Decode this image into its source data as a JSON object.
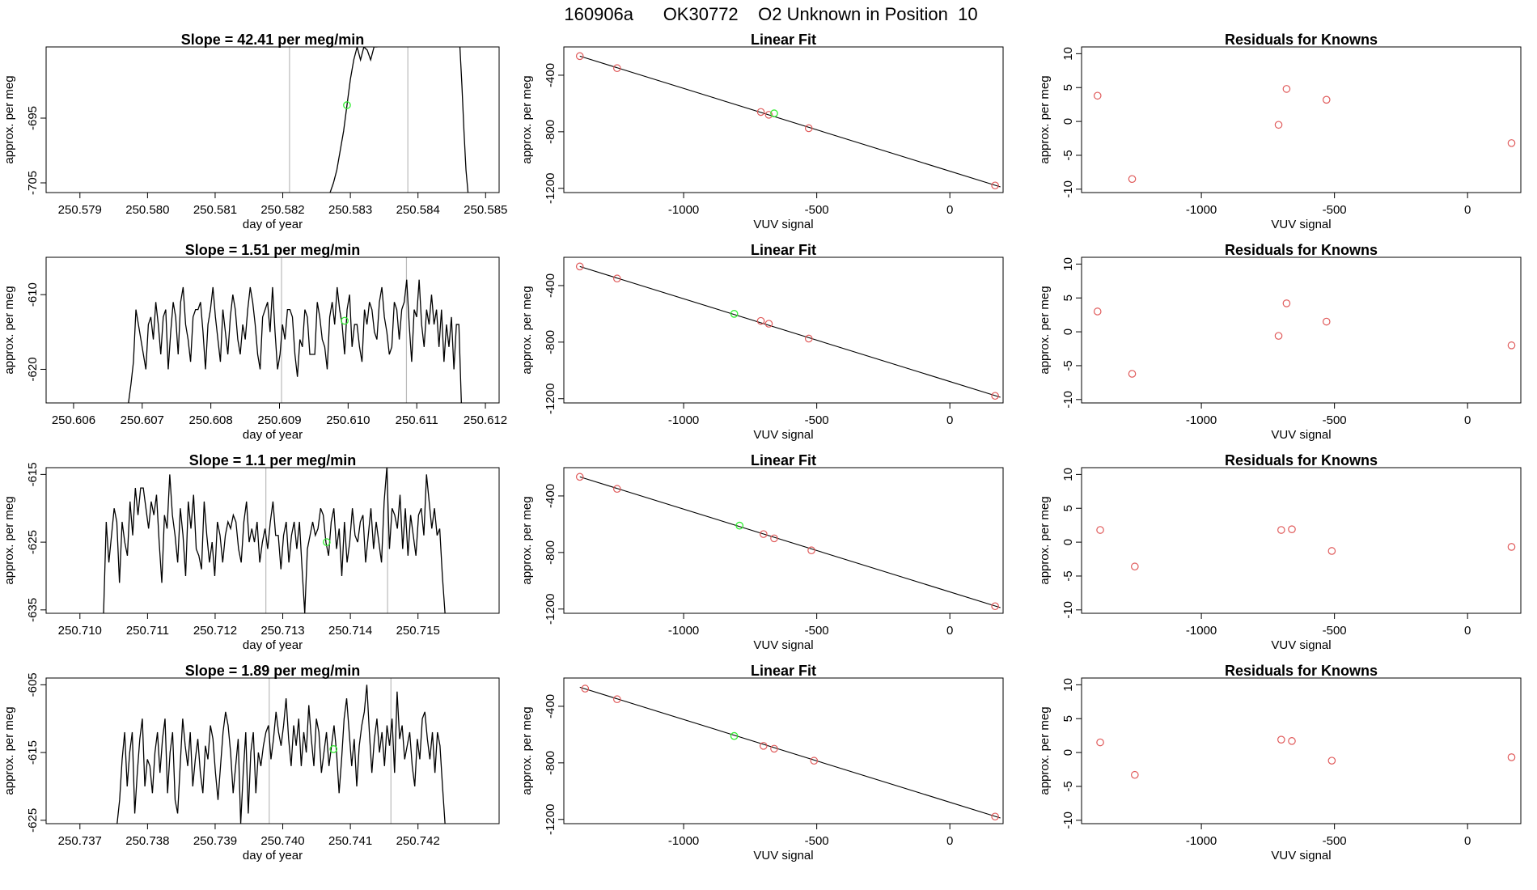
{
  "page_title": "160906a      OK30772    O2 Unknown in Position  10",
  "colors": {
    "trace": "#000000",
    "known_point": "#e05a5a",
    "unknown_point": "#33ee33",
    "vline": "#bbbbbb"
  },
  "chart_data": [
    {
      "type": "line",
      "title": "Slope =  42.41  per meg/min",
      "xlabel": "day of year",
      "ylabel": "approx. per meg",
      "xlim": [
        250.5785,
        250.5852
      ],
      "ylim": [
        -706.5,
        -684
      ],
      "xticks": [
        "250.579",
        "250.580",
        "250.581",
        "250.582",
        "250.583",
        "250.584",
        "250.585"
      ],
      "yticks": [
        "-695",
        "-705"
      ],
      "vlines": [
        250.5821,
        250.58385
      ],
      "series": [
        {
          "x": [
            250.5827,
            250.58275,
            250.5828,
            250.58285,
            250.5829,
            250.58295,
            250.583,
            250.58305,
            250.5831,
            250.58315,
            250.5832,
            250.58325,
            250.5833,
            250.58335,
            250.5834
          ],
          "y": [
            -706.5,
            -705.0,
            -703.0,
            -700.0,
            -697.0,
            -693.0,
            -689.0,
            -686.0,
            -684.0,
            -686.0,
            -684.0,
            -684.5,
            -686.0,
            -684.0,
            -684.0
          ]
        },
        {
          "x": [
            250.58462,
            250.58465,
            250.58468,
            250.58471,
            250.58474
          ],
          "y": [
            -684.0,
            -690.0,
            -697.0,
            -703.0,
            -706.5
          ]
        }
      ],
      "unknown_point": {
        "x": 250.58295,
        "y": -693.0
      }
    },
    {
      "type": "scatter",
      "title": "Linear Fit",
      "xlabel": "VUV signal",
      "ylabel": "approx. per meg",
      "xlim": [
        -1450,
        200
      ],
      "ylim": [
        -1230,
        -200
      ],
      "xticks": [
        "-1000",
        "-500",
        "0"
      ],
      "yticks": [
        "-400",
        "-800",
        "-1200"
      ],
      "fit_line": {
        "x": [
          -1390,
          190
        ],
        "y": [
          -265,
          -1190
        ]
      },
      "known_points": {
        "x": [
          -1390,
          -1250,
          -710,
          -680,
          -530,
          170
        ],
        "y": [
          -265,
          -350,
          -660,
          -680,
          -775,
          -1180
        ]
      },
      "unknown_point": {
        "x": -660,
        "y": -670
      }
    },
    {
      "type": "scatter",
      "title": "Residuals for Knowns",
      "xlabel": "VUV signal",
      "ylabel": "approx. per meg",
      "xlim": [
        -1450,
        200
      ],
      "ylim": [
        -10.5,
        11
      ],
      "xticks": [
        "-1000",
        "-500",
        "0"
      ],
      "yticks": [
        "-10",
        "-5",
        "0",
        "5",
        "10"
      ],
      "known_points": {
        "x": [
          -1390,
          -1260,
          -710,
          -680,
          -530,
          165
        ],
        "y": [
          3.8,
          -8.5,
          -0.5,
          4.8,
          3.2,
          -3.2
        ]
      }
    },
    {
      "type": "line",
      "title": "Slope =  1.51  per meg/min",
      "xlabel": "day of year",
      "ylabel": "approx. per meg",
      "xlim": [
        250.6056,
        250.6122
      ],
      "ylim": [
        -624.5,
        -605
      ],
      "xticks": [
        "250.606",
        "250.607",
        "250.608",
        "250.609",
        "250.610",
        "250.611",
        "250.612"
      ],
      "yticks": [
        "-610",
        "-620"
      ],
      "vlines": [
        250.60903,
        250.61085
      ],
      "series": [
        {
          "x_start": 250.6068,
          "x_end": 250.61165,
          "y": [
            -624.5,
            -622,
            -619,
            -612,
            -614,
            -616,
            -618,
            -620,
            -614,
            -613,
            -616,
            -611,
            -614,
            -618,
            -613,
            -612,
            -620,
            -615,
            -611,
            -613,
            -618,
            -611,
            -609,
            -614,
            -616,
            -619,
            -613,
            -612,
            -612,
            -611,
            -615,
            -620,
            -614,
            -612,
            -609,
            -613,
            -616,
            -619,
            -612,
            -615,
            -618,
            -613,
            -610,
            -612,
            -616,
            -618,
            -614,
            -616,
            -612,
            -609,
            -611,
            -614,
            -618,
            -620,
            -613,
            -612,
            -611,
            -615,
            -609,
            -615,
            -620,
            -618,
            -614,
            -616,
            -612,
            -612,
            -613,
            -618,
            -621,
            -616,
            -617,
            -612,
            -613,
            -618,
            -618,
            -618,
            -611,
            -613,
            -616,
            -617,
            -620,
            -613,
            -611,
            -614,
            -609,
            -612,
            -614,
            -618,
            -612,
            -610,
            -617,
            -614,
            -614,
            -617,
            -619,
            -612,
            -614,
            -611,
            -612,
            -615,
            -616,
            -611,
            -609,
            -613,
            -615,
            -618,
            -617,
            -611,
            -612,
            -616,
            -612,
            -611,
            -608,
            -614,
            -619,
            -612,
            -613,
            -608,
            -614,
            -617,
            -612,
            -614,
            -610,
            -614,
            -612,
            -617,
            -612,
            -619,
            -614,
            -617,
            -613,
            -620,
            -614,
            -614,
            -624.5
          ]
        }
      ],
      "unknown_point": {
        "x": 250.60995,
        "y": -613.5
      }
    },
    {
      "type": "scatter",
      "title": "Linear Fit",
      "xlabel": "VUV signal",
      "ylabel": "approx. per meg",
      "xlim": [
        -1450,
        200
      ],
      "ylim": [
        -1230,
        -200
      ],
      "xticks": [
        "-1000",
        "-500",
        "0"
      ],
      "yticks": [
        "-400",
        "-800",
        "-1200"
      ],
      "fit_line": {
        "x": [
          -1390,
          190
        ],
        "y": [
          -265,
          -1190
        ]
      },
      "known_points": {
        "x": [
          -1390,
          -1250,
          -710,
          -680,
          -530,
          170
        ],
        "y": [
          -265,
          -350,
          -650,
          -670,
          -775,
          -1180
        ]
      },
      "unknown_point": {
        "x": -810,
        "y": -600
      }
    },
    {
      "type": "scatter",
      "title": "Residuals for Knowns",
      "xlabel": "VUV signal",
      "ylabel": "approx. per meg",
      "xlim": [
        -1450,
        200
      ],
      "ylim": [
        -10.5,
        11
      ],
      "xticks": [
        "-1000",
        "-500",
        "0"
      ],
      "yticks": [
        "-10",
        "-5",
        "0",
        "5",
        "10"
      ],
      "known_points": {
        "x": [
          -1390,
          -1260,
          -710,
          -680,
          -530,
          165
        ],
        "y": [
          3.0,
          -6.2,
          -0.6,
          4.2,
          1.5,
          -2.0
        ]
      }
    },
    {
      "type": "line",
      "title": "Slope =  1.1  per meg/min",
      "xlabel": "day of year",
      "ylabel": "approx. per meg",
      "xlim": [
        250.7095,
        250.7162
      ],
      "ylim": [
        -635.5,
        -614
      ],
      "xticks": [
        "250.710",
        "250.711",
        "250.712",
        "250.713",
        "250.714",
        "250.715"
      ],
      "yticks": [
        "-615",
        "-625",
        "-635"
      ],
      "vlines": [
        250.71275,
        250.71455
      ],
      "series": [
        {
          "x_start": 250.71035,
          "x_end": 250.7154,
          "y": [
            -635.5,
            -622,
            -628,
            -624,
            -620,
            -622,
            -631,
            -622,
            -625,
            -627,
            -619,
            -624,
            -617,
            -621,
            -617,
            -617,
            -620,
            -623,
            -619,
            -621,
            -618,
            -625,
            -631,
            -621,
            -623,
            -615,
            -621,
            -624,
            -628,
            -620,
            -624,
            -630,
            -619,
            -623,
            -618,
            -626,
            -627,
            -629,
            -619,
            -624,
            -628,
            -625,
            -630,
            -622,
            -624,
            -628,
            -624,
            -622,
            -623,
            -621,
            -622,
            -626,
            -628,
            -622,
            -619,
            -625,
            -623,
            -625,
            -622,
            -628,
            -625,
            -623,
            -626,
            -622,
            -619,
            -624,
            -624,
            -629,
            -624,
            -622,
            -628,
            -624,
            -622,
            -626,
            -622,
            -629,
            -635.5,
            -626,
            -624,
            -622,
            -624,
            -623,
            -620,
            -621,
            -625,
            -627,
            -622,
            -620,
            -626,
            -623,
            -630,
            -622,
            -628,
            -625,
            -620,
            -624,
            -625,
            -622,
            -621,
            -628,
            -624,
            -620,
            -626,
            -622,
            -625,
            -628,
            -619,
            -614,
            -626,
            -620,
            -621,
            -623,
            -618,
            -626,
            -620,
            -627,
            -621,
            -624,
            -627,
            -621,
            -620,
            -624,
            -615,
            -619,
            -623,
            -620,
            -624,
            -623,
            -630,
            -635.5
          ]
        }
      ],
      "unknown_point": {
        "x": 250.71365,
        "y": -625.0
      }
    },
    {
      "type": "scatter",
      "title": "Linear Fit",
      "xlabel": "VUV signal",
      "ylabel": "approx. per meg",
      "xlim": [
        -1450,
        200
      ],
      "ylim": [
        -1230,
        -200
      ],
      "xticks": [
        "-1000",
        "-500",
        "0"
      ],
      "yticks": [
        "-400",
        "-800",
        "-1200"
      ],
      "fit_line": {
        "x": [
          -1390,
          190
        ],
        "y": [
          -265,
          -1190
        ]
      },
      "known_points": {
        "x": [
          -1390,
          -1250,
          -700,
          -660,
          -520,
          170
        ],
        "y": [
          -265,
          -350,
          -670,
          -700,
          -785,
          -1180
        ]
      },
      "unknown_point": {
        "x": -790,
        "y": -610
      }
    },
    {
      "type": "scatter",
      "title": "Residuals for Knowns",
      "xlabel": "VUV signal",
      "ylabel": "approx. per meg",
      "xlim": [
        -1450,
        200
      ],
      "ylim": [
        -10.5,
        11
      ],
      "xticks": [
        "-1000",
        "-500",
        "0"
      ],
      "yticks": [
        "-10",
        "-5",
        "0",
        "5",
        "10"
      ],
      "known_points": {
        "x": [
          -1380,
          -1250,
          -700,
          -660,
          -510,
          165
        ],
        "y": [
          1.8,
          -3.6,
          1.8,
          1.9,
          -1.3,
          -0.7
        ]
      }
    },
    {
      "type": "line",
      "title": "Slope =  1.89  per meg/min",
      "xlabel": "day of year",
      "ylabel": "approx. per meg",
      "xlim": [
        250.7365,
        250.7432
      ],
      "ylim": [
        -625.5,
        -604
      ],
      "xticks": [
        "250.737",
        "250.738",
        "250.739",
        "250.740",
        "250.741",
        "250.742"
      ],
      "yticks": [
        "-605",
        "-615",
        "-625"
      ],
      "vlines": [
        250.7398,
        250.7416
      ],
      "series": [
        {
          "x_start": 250.73755,
          "x_end": 250.7424,
          "y": [
            -625.5,
            -622,
            -616,
            -612,
            -620,
            -615,
            -612,
            -624,
            -618,
            -613,
            -610,
            -620,
            -616,
            -617,
            -621,
            -615,
            -612,
            -618,
            -613,
            -610,
            -621,
            -615,
            -612,
            -622,
            -624,
            -617,
            -610,
            -614,
            -617,
            -612,
            -620,
            -616,
            -613,
            -618,
            -621,
            -614,
            -616,
            -611,
            -613,
            -618,
            -622,
            -617,
            -612,
            -609,
            -611,
            -615,
            -621,
            -617,
            -613,
            -625.5,
            -618,
            -612,
            -624,
            -615,
            -612,
            -621,
            -615,
            -617,
            -614,
            -612,
            -611,
            -616,
            -613,
            -609,
            -612,
            -614,
            -611,
            -607,
            -613,
            -617,
            -611,
            -614,
            -610,
            -617,
            -612,
            -615,
            -608,
            -613,
            -617,
            -610,
            -612,
            -618,
            -615,
            -612,
            -617,
            -614,
            -611,
            -615,
            -621,
            -616,
            -610,
            -607,
            -612,
            -617,
            -613,
            -620,
            -614,
            -611,
            -609,
            -605,
            -612,
            -618,
            -613,
            -610,
            -615,
            -612,
            -617,
            -611,
            -614,
            -610,
            -618,
            -606,
            -613,
            -611,
            -616,
            -614,
            -612,
            -617,
            -620,
            -613,
            -616,
            -610,
            -609,
            -613,
            -616,
            -612,
            -618,
            -612,
            -614,
            -620,
            -625.5
          ]
        }
      ],
      "unknown_point": {
        "x": 250.74075,
        "y": -614.5
      }
    },
    {
      "type": "scatter",
      "title": "Linear Fit",
      "xlabel": "VUV signal",
      "ylabel": "approx. per meg",
      "xlim": [
        -1450,
        200
      ],
      "ylim": [
        -1230,
        -200
      ],
      "xticks": [
        "-1000",
        "-500",
        "0"
      ],
      "yticks": [
        "-400",
        "-800",
        "-1200"
      ],
      "fit_line": {
        "x": [
          -1390,
          190
        ],
        "y": [
          -265,
          -1190
        ]
      },
      "known_points": {
        "x": [
          -1370,
          -1250,
          -700,
          -660,
          -510,
          170
        ],
        "y": [
          -275,
          -350,
          -680,
          -700,
          -785,
          -1180
        ]
      },
      "unknown_point": {
        "x": -810,
        "y": -610
      }
    },
    {
      "type": "scatter",
      "title": "Residuals for Knowns",
      "xlabel": "VUV signal",
      "ylabel": "approx. per meg",
      "xlim": [
        -1450,
        200
      ],
      "ylim": [
        -10.5,
        11
      ],
      "xticks": [
        "-1000",
        "-500",
        "0"
      ],
      "yticks": [
        "-10",
        "-5",
        "0",
        "5",
        "10"
      ],
      "known_points": {
        "x": [
          -1380,
          -1250,
          -700,
          -660,
          -510,
          165
        ],
        "y": [
          1.5,
          -3.3,
          1.9,
          1.7,
          -1.2,
          -0.7
        ]
      }
    }
  ]
}
